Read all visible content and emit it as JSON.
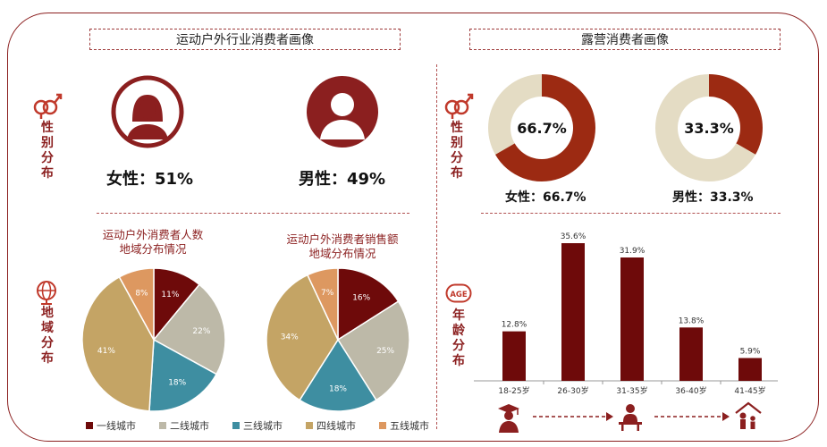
{
  "left_header": "运动户外行业消费者画像",
  "right_header": "露营消费者画像",
  "left_section": {
    "gender_label": "性别分布",
    "female_label": "女性：51%",
    "male_label": "男性：49%",
    "region_label": "地域分布",
    "pie1_title_line1": "运动户外消费者人数",
    "pie1_title_line2": "地域分布情况",
    "pie2_title_line1": "运动户外消费者销售额",
    "pie2_title_line2": "地域分布情况"
  },
  "right_section": {
    "gender_label": "性别分布",
    "female_label": "女性：66.7%",
    "male_label": "男性：33.3%",
    "age_label": "年龄分布",
    "age_badge": "AGE"
  },
  "legend": [
    {
      "label": "一线城市",
      "color": "#6e0a0a"
    },
    {
      "label": "二线城市",
      "color": "#bdb9a8"
    },
    {
      "label": "三线城市",
      "color": "#3e8ea1"
    },
    {
      "label": "四线城市",
      "color": "#c4a465"
    },
    {
      "label": "五线城市",
      "color": "#dd9860"
    }
  ],
  "chart_data": [
    {
      "type": "pie",
      "title": "运动户外消费者人数地域分布情况",
      "categories": [
        "一线城市",
        "二线城市",
        "三线城市",
        "四线城市",
        "五线城市"
      ],
      "values": [
        11,
        22,
        18,
        41,
        8
      ],
      "labels": [
        "11%",
        "22%",
        "18%",
        "41%",
        "8%"
      ]
    },
    {
      "type": "pie",
      "title": "运动户外消费者销售额地域分布情况",
      "categories": [
        "一线城市",
        "二线城市",
        "三线城市",
        "四线城市",
        "五线城市"
      ],
      "values": [
        16,
        25,
        18,
        34,
        7
      ],
      "labels": [
        "16%",
        "25%",
        "18%",
        "34%",
        "7%"
      ]
    },
    {
      "type": "pie",
      "title": "",
      "categories": [
        "女性",
        "男性"
      ],
      "values": [
        66.7,
        33.3
      ],
      "center_label": "66.7%",
      "highlight": "女性"
    },
    {
      "type": "pie",
      "title": "",
      "categories": [
        "男性",
        "女性"
      ],
      "values": [
        33.3,
        66.7
      ],
      "center_label": "33.3%",
      "highlight": "男性"
    },
    {
      "type": "bar",
      "title": "",
      "categories": [
        "18-25岁",
        "26-30岁",
        "31-35岁",
        "36-40岁",
        "41-45岁"
      ],
      "values": [
        12.8,
        35.6,
        31.9,
        13.8,
        5.9
      ],
      "labels": [
        "12.8%",
        "35.6%",
        "31.9%",
        "13.8%",
        "5.9%"
      ],
      "ylim": [
        0,
        40
      ],
      "color": "#6e0a0a"
    }
  ],
  "colors": {
    "brand": "#8b1f1f",
    "dark_red": "#6e0a0a",
    "donut_red": "#9c2a12",
    "donut_beige": "#e4dcc4"
  }
}
